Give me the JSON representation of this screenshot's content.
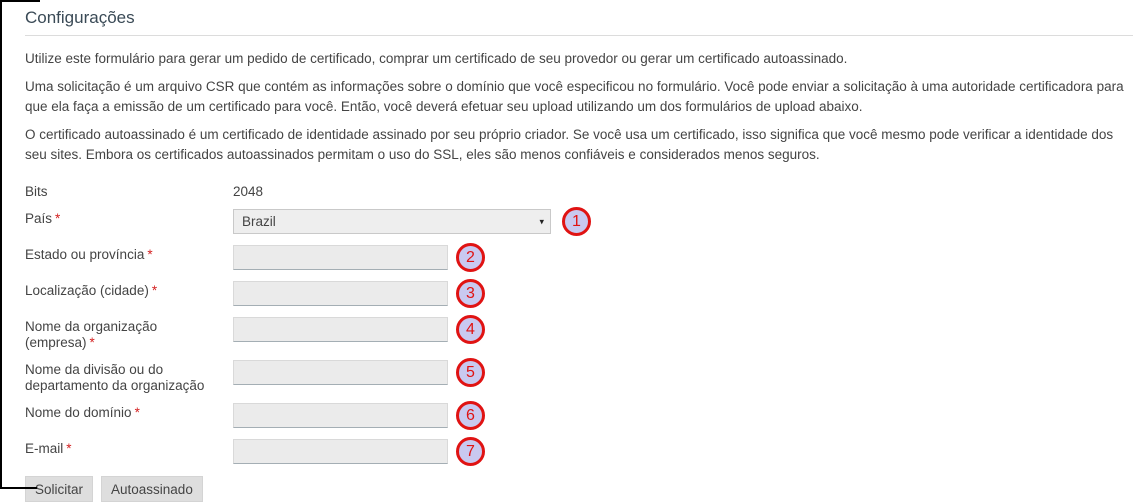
{
  "panel": {
    "title": "Configurações"
  },
  "intro": {
    "p1": "Utilize este formulário para gerar um pedido de certificado, comprar um certificado de seu provedor ou gerar um certificado autoassinado.",
    "p2": "Uma solicitação é um arquivo CSR que contém as informações sobre o domínio que você especificou no formulário. Você pode enviar a solicitação à uma autoridade certificadora para que ela faça a emissão de um certificado para você. Então, você deverá efetuar seu upload utilizando um dos formulários de upload abaixo.",
    "p3": "O certificado autoassinado é um certificado de identidade assinado por seu próprio criador. Se você usa um certificado, isso significa que você mesmo pode verificar a identidade dos seu sites. Embora os certificados autoassinados permitam o uso do SSL, eles são menos confiáveis e considerados menos seguros."
  },
  "form": {
    "bits": {
      "label": "Bits",
      "value": "2048"
    },
    "pais": {
      "label": "País",
      "required_mark": "*",
      "value": "Brazil",
      "badge": "1"
    },
    "estado": {
      "label": "Estado ou província",
      "required_mark": "*",
      "value": "",
      "badge": "2"
    },
    "cidade": {
      "label": "Localização (cidade)",
      "required_mark": "*",
      "value": "",
      "badge": "3"
    },
    "organizacao": {
      "label": "Nome da organização (empresa)",
      "required_mark": "*",
      "value": "",
      "badge": "4"
    },
    "departamento": {
      "label": "Nome da divisão ou do departamento da organização",
      "required_mark": "",
      "value": "",
      "badge": "5"
    },
    "dominio": {
      "label": "Nome do domínio",
      "required_mark": "*",
      "value": "",
      "badge": "6"
    },
    "email": {
      "label": "E-mail",
      "required_mark": "*",
      "value": "",
      "badge": "7"
    }
  },
  "actions": {
    "solicitar": "Solicitar",
    "autoassinado": "Autoassinado"
  },
  "icons": {
    "select_arrow": "▾"
  },
  "colors": {
    "title": "#3a4a56",
    "body_text": "#444444",
    "required_mark": "#d42121",
    "input_bg": "#ebebeb",
    "badge_ring": "#e01313",
    "badge_fill": "#c9c9f0",
    "button_bg": "#dedede",
    "crop_border": "#000000"
  }
}
